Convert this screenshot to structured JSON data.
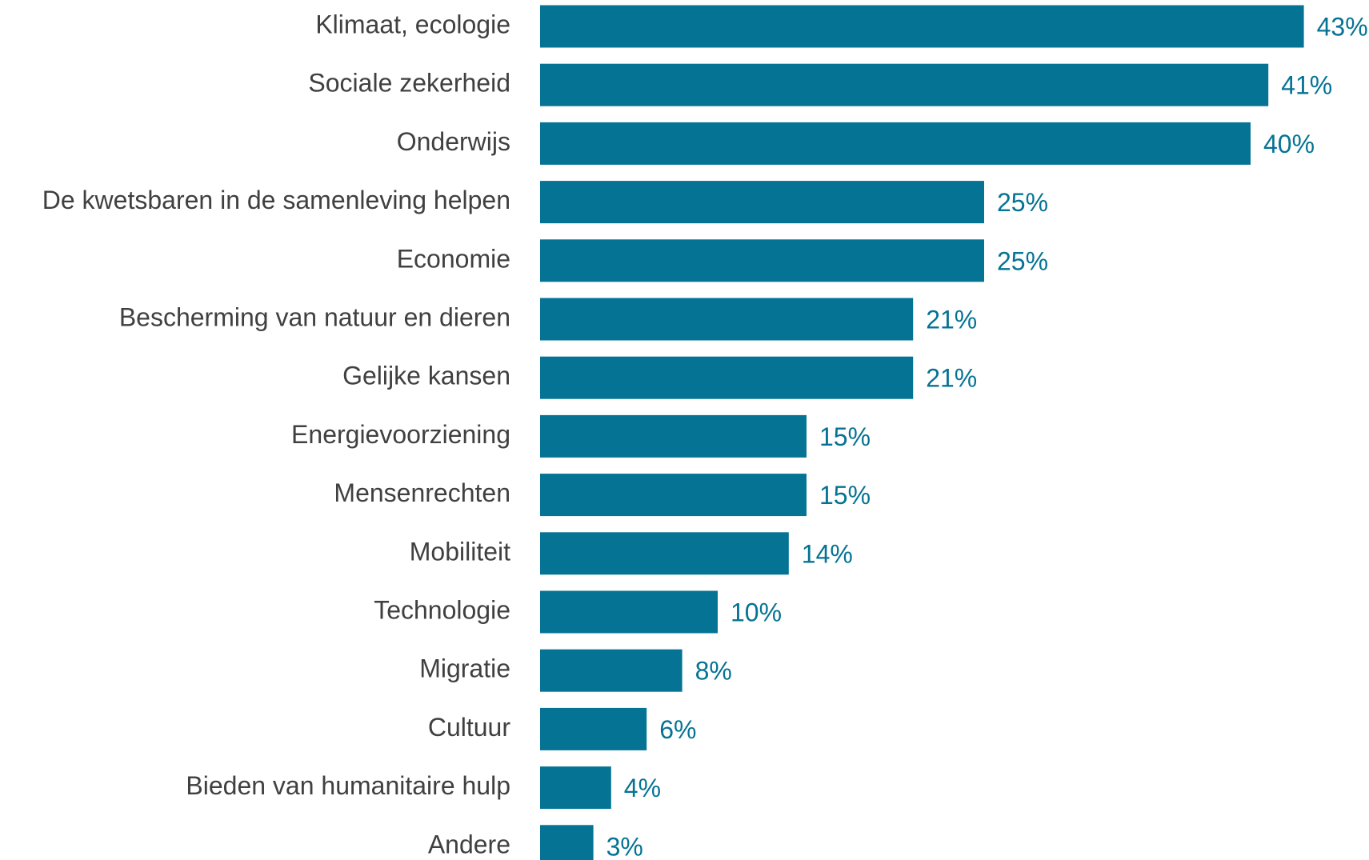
{
  "colors": {
    "bar": "#057394",
    "value_label": "#057394",
    "category_label": "#404040"
  },
  "chart_data": {
    "type": "bar",
    "orientation": "horizontal",
    "title": "",
    "xlabel": "",
    "ylabel": "",
    "xlim": [
      0,
      43
    ],
    "grid": false,
    "legend": "none",
    "categories": [
      "Klimaat, ecologie",
      "Sociale zekerheid",
      "Onderwijs",
      "De kwetsbaren in de samenleving helpen",
      "Economie",
      "Bescherming van natuur en dieren",
      "Gelijke kansen",
      "Energievoorziening",
      "Mensenrechten",
      "Mobiliteit",
      "Technologie",
      "Migratie",
      "Cultuur",
      "Bieden van humanitaire hulp",
      "Andere"
    ],
    "values": [
      43,
      41,
      40,
      25,
      25,
      21,
      21,
      15,
      15,
      14,
      10,
      8,
      6,
      4,
      3
    ],
    "value_labels": [
      "43%",
      "41%",
      "40%",
      "25%",
      "25%",
      "21%",
      "21%",
      "15%",
      "15%",
      "14%",
      "10%",
      "8%",
      "6%",
      "4%",
      "3%"
    ]
  }
}
